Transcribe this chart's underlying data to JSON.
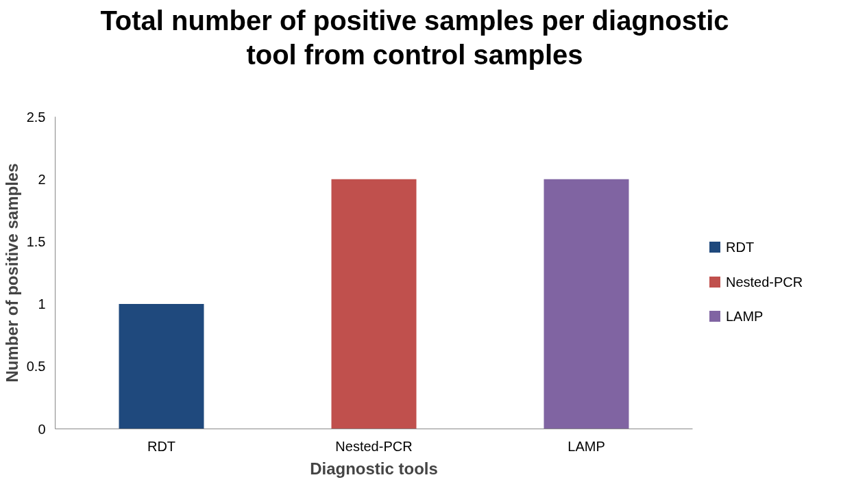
{
  "chart_data": {
    "type": "bar",
    "title": "Total number of positive samples per diagnostic\ntool from control samples",
    "xlabel": "Diagnostic tools",
    "ylabel": "Number of positive samples",
    "categories": [
      "RDT",
      "Nested-PCR",
      "LAMP"
    ],
    "stacked": true,
    "series": [
      {
        "name": "RDT",
        "color": "#1f497d",
        "values": [
          1,
          null,
          null
        ]
      },
      {
        "name": "Nested-PCR",
        "color": "#c0504d",
        "values": [
          null,
          2,
          null
        ]
      },
      {
        "name": "LAMP",
        "color": "#8064a2",
        "values": [
          null,
          null,
          2
        ]
      }
    ],
    "ylim": [
      0,
      2.5
    ],
    "yticks": [
      0,
      0.5,
      1,
      1.5,
      2,
      2.5
    ],
    "grid": false,
    "legend": "right"
  }
}
